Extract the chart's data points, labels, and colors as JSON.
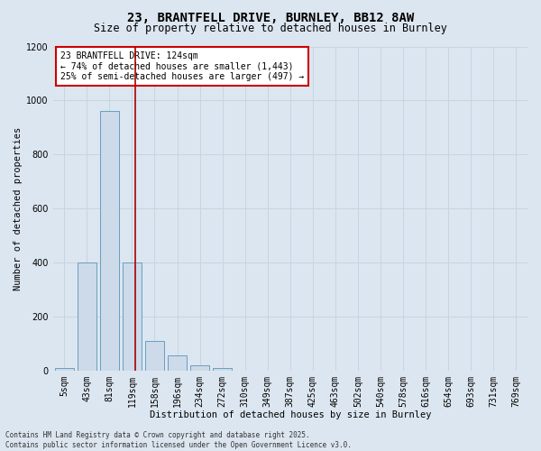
{
  "title_line1": "23, BRANTFELL DRIVE, BURNLEY, BB12 8AW",
  "title_line2": "Size of property relative to detached houses in Burnley",
  "xlabel": "Distribution of detached houses by size in Burnley",
  "ylabel": "Number of detached properties",
  "bins": [
    "5sqm",
    "43sqm",
    "81sqm",
    "119sqm",
    "158sqm",
    "196sqm",
    "234sqm",
    "272sqm",
    "310sqm",
    "349sqm",
    "387sqm",
    "425sqm",
    "463sqm",
    "502sqm",
    "540sqm",
    "578sqm",
    "616sqm",
    "654sqm",
    "693sqm",
    "731sqm",
    "769sqm"
  ],
  "values": [
    10,
    400,
    960,
    400,
    110,
    55,
    20,
    10,
    0,
    0,
    0,
    0,
    0,
    0,
    0,
    0,
    0,
    0,
    0,
    0,
    0
  ],
  "bar_color": "#ccdaea",
  "bar_edge_color": "#6a9fc0",
  "grid_color": "#c8d4e0",
  "background_color": "#dce6f0",
  "vline_x": 3.15,
  "vline_color": "#aa0000",
  "annotation_title": "23 BRANTFELL DRIVE: 124sqm",
  "annotation_line2": "← 74% of detached houses are smaller (1,443)",
  "annotation_line3": "25% of semi-detached houses are larger (497) →",
  "annotation_box_facecolor": "#ffffff",
  "annotation_box_edgecolor": "#cc0000",
  "footer_line1": "Contains HM Land Registry data © Crown copyright and database right 2025.",
  "footer_line2": "Contains public sector information licensed under the Open Government Licence v3.0.",
  "ylim": [
    0,
    1200
  ],
  "yticks": [
    0,
    200,
    400,
    600,
    800,
    1000,
    1200
  ],
  "title1_fontsize": 10,
  "title2_fontsize": 8.5,
  "tick_fontsize": 7,
  "ylabel_fontsize": 7.5,
  "xlabel_fontsize": 7.5,
  "annot_fontsize": 7,
  "footer_fontsize": 5.5
}
